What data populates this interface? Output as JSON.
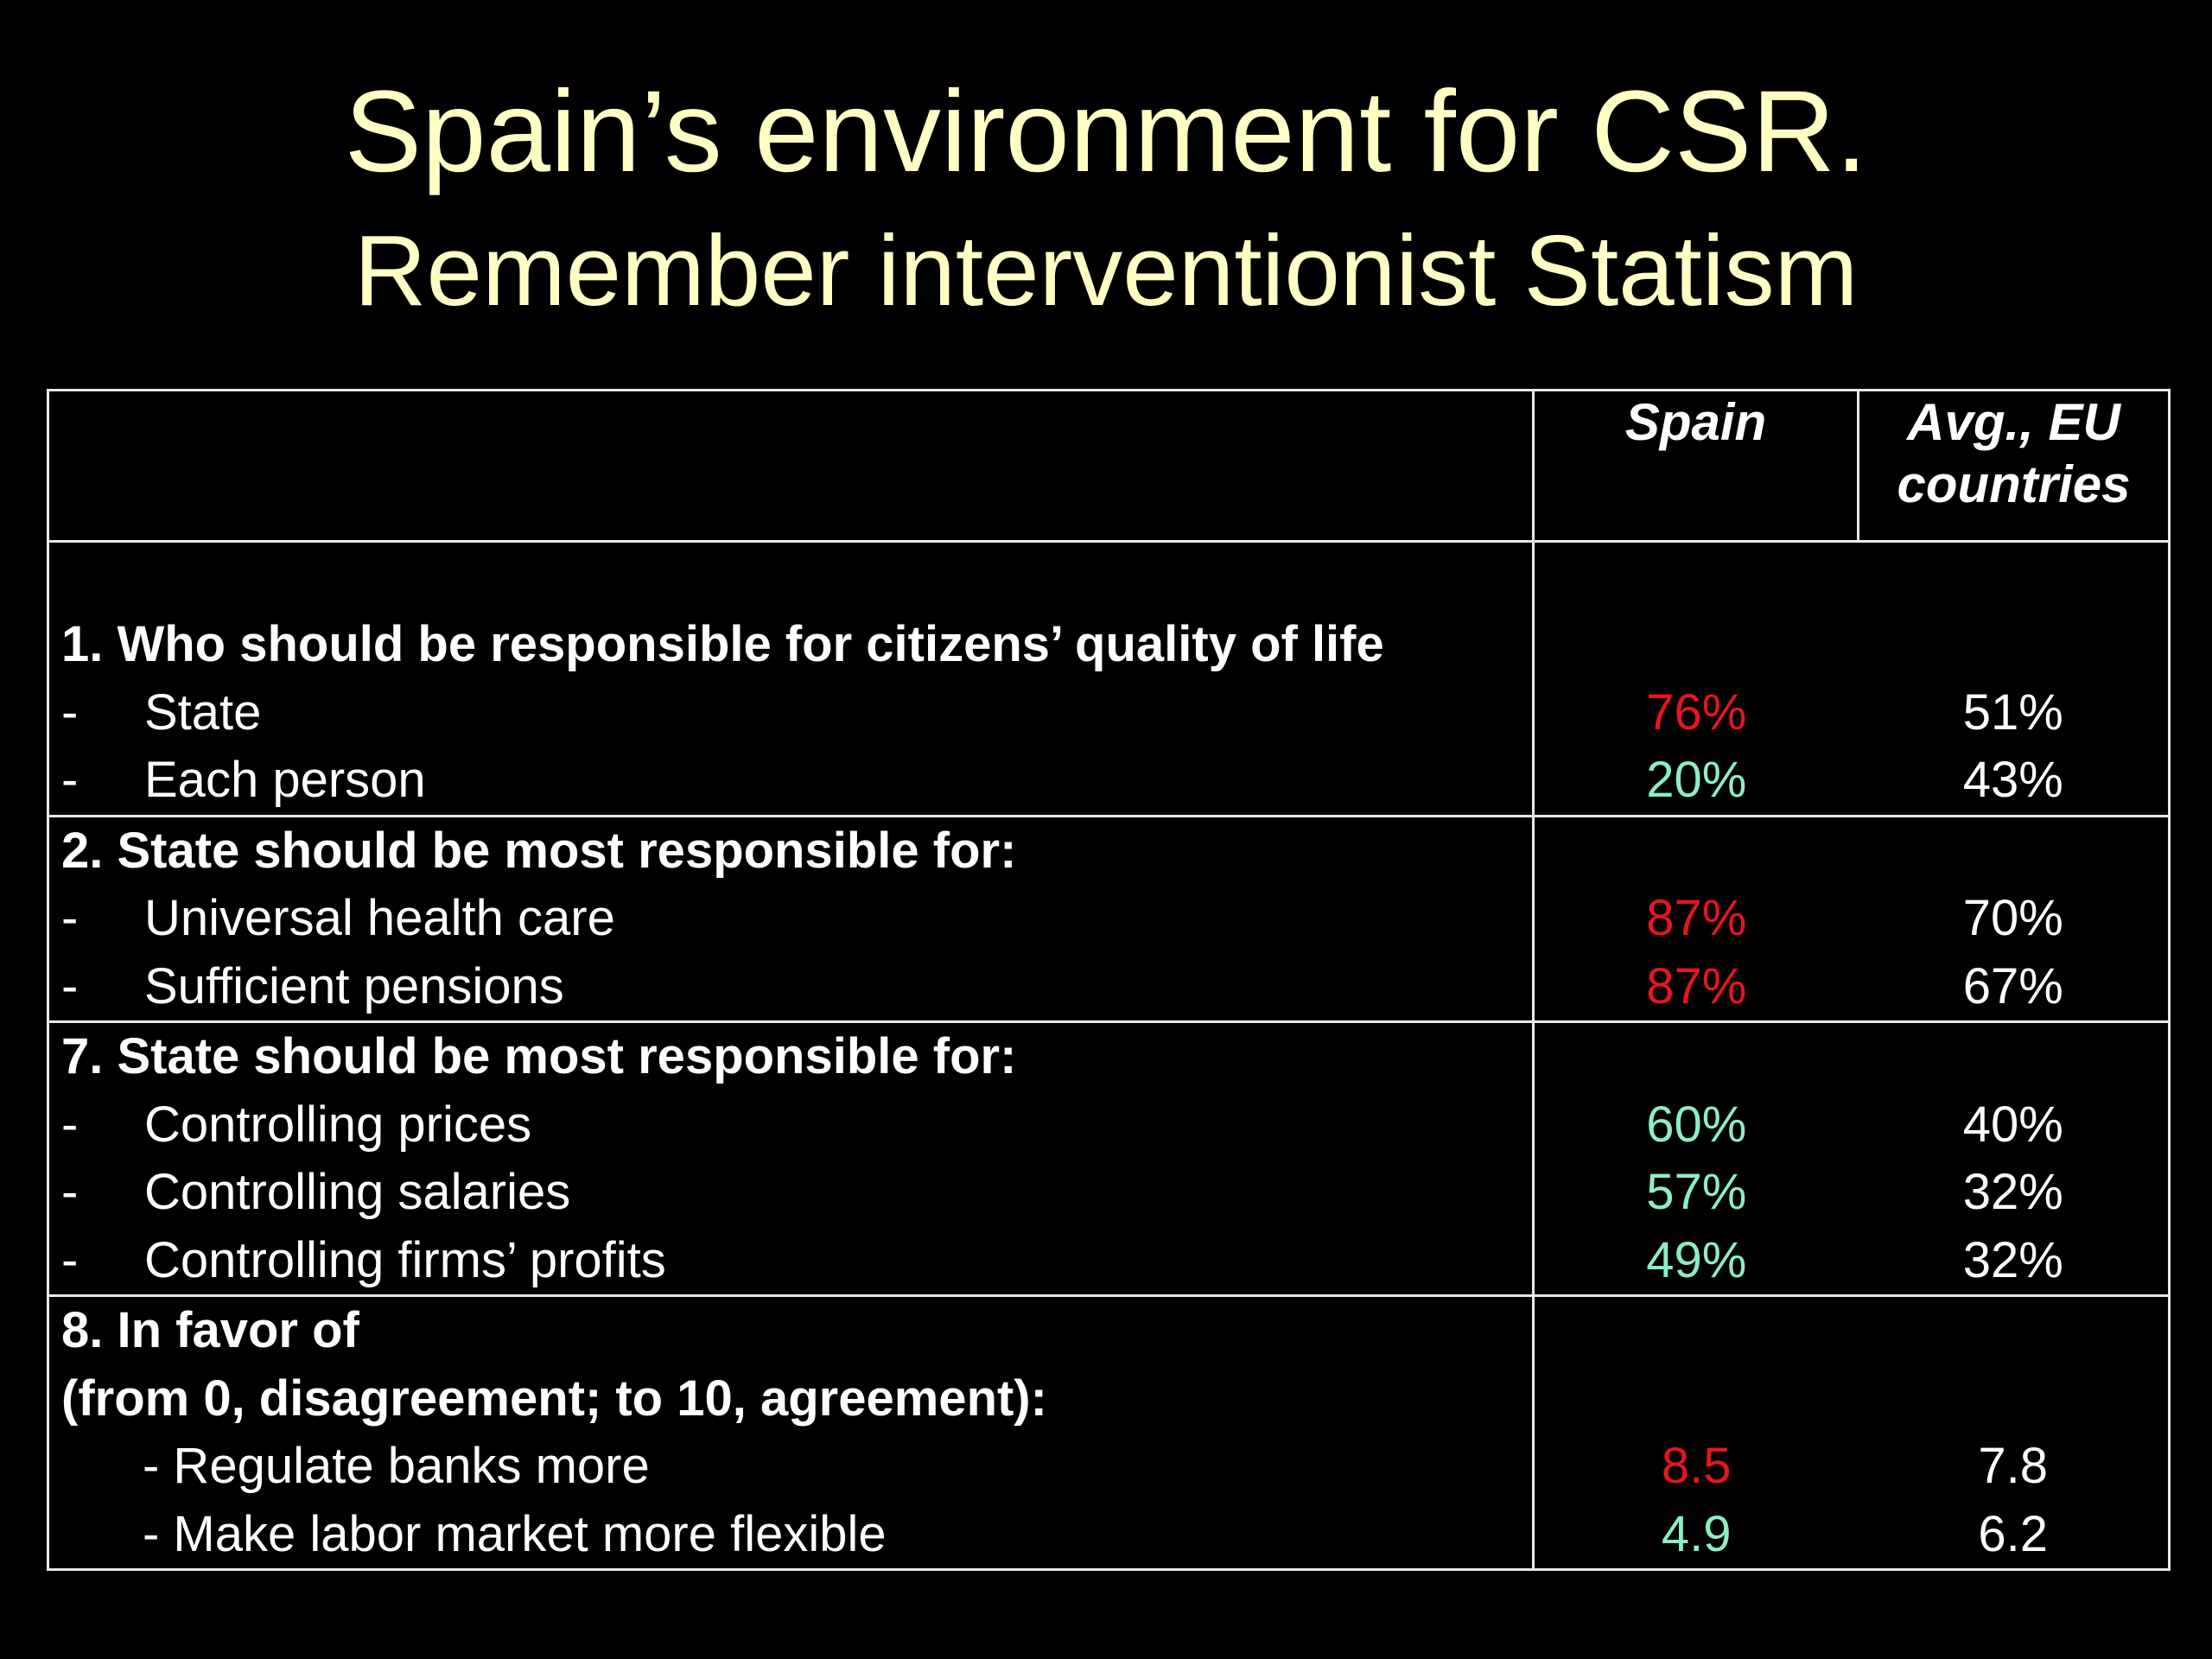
{
  "title": {
    "line1": "Spain’s environment for CSR.",
    "line2": "Remember interventionist Statism"
  },
  "table": {
    "header": {
      "col1": "",
      "col2": "Spain",
      "col3": "Avg., EU countries"
    },
    "sections": [
      {
        "question": "1. Who should be responsible for citizens’ quality of life",
        "items": [
          {
            "dash": "-",
            "label": "State",
            "spain": "76%",
            "spain_color": "#E8141E",
            "eu": "51%"
          },
          {
            "dash": "-",
            "label": "Each person",
            "spain": "20%",
            "spain_color": "#8CEFC4",
            "eu": "43%"
          }
        ]
      },
      {
        "question": "2. State should be most responsible for:",
        "items": [
          {
            "dash": "-",
            "label": "Universal health care",
            "spain": "87%",
            "spain_color": "#E8141E",
            "eu": "70%"
          },
          {
            "dash": "-",
            "label": "Sufficient pensions",
            "spain": "87%",
            "spain_color": "#E8141E",
            "eu": "67%"
          }
        ]
      },
      {
        "question": "7. State should be most responsible for:",
        "items": [
          {
            "dash": "-",
            "label": "Controlling prices",
            "spain": "60%",
            "spain_color": "#8CEFC4",
            "eu": "40%"
          },
          {
            "dash": "-",
            "label": "Controlling salaries",
            "spain": "57%",
            "spain_color": "#8CEFC4",
            "eu": "32%"
          },
          {
            "dash": "-",
            "label": "Controlling firms’ profits",
            "spain": "49%",
            "spain_color": "#8CEFC4",
            "eu": "32%"
          }
        ]
      },
      {
        "question": "8. In favor of",
        "question2": "(from 0, disagreement; to 10, agreement):",
        "items": [
          {
            "label": "- Regulate banks more",
            "spain": "8.5",
            "spain_color": "#E8141E",
            "eu": "7.8"
          },
          {
            "label": "- Make labor market more flexible",
            "spain": "4.9",
            "spain_color": "#8CEFC4",
            "eu": "6.2"
          }
        ]
      }
    ]
  }
}
